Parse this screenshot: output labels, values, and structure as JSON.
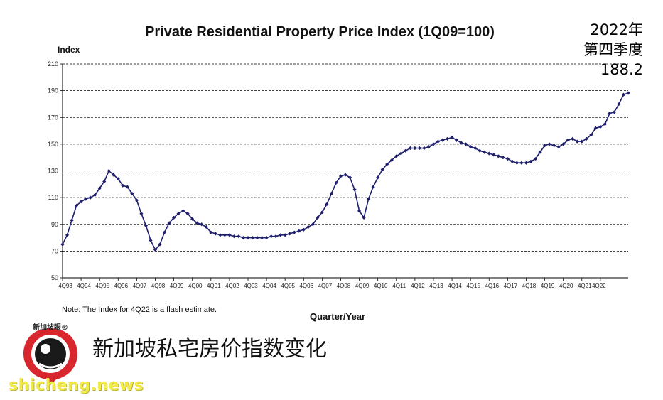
{
  "chart_data": {
    "type": "line",
    "title": "Private Residential Property Price Index (1Q09=100)",
    "ylabel": "Index",
    "xlabel": "Quarter/Year",
    "ylim": [
      50,
      210
    ],
    "yticks": [
      50,
      70,
      90,
      110,
      130,
      150,
      170,
      190,
      210
    ],
    "grid": "horizontal dashed",
    "x_tick_labels": [
      "4Q93",
      "4Q94",
      "4Q95",
      "4Q96",
      "4Q97",
      "4Q98",
      "4Q99",
      "4Q00",
      "4Q01",
      "4Q02",
      "4Q03",
      "4Q04",
      "4Q05",
      "4Q06",
      "4Q07",
      "4Q08",
      "4Q09",
      "4Q10",
      "4Q11",
      "4Q12",
      "4Q13",
      "4Q14",
      "4Q15",
      "4Q16",
      "4Q17",
      "4Q18",
      "4Q19",
      "4Q20",
      "4Q21",
      "4Q22"
    ],
    "series_color": "#1f1f6e",
    "values": [
      75,
      82,
      93,
      104,
      107,
      109,
      110,
      112,
      117,
      122,
      130,
      127,
      124,
      119,
      118,
      113,
      108,
      98,
      89,
      78,
      71,
      75,
      84,
      91,
      95,
      98,
      100,
      98,
      94,
      91,
      90,
      88,
      84,
      83,
      82,
      82,
      82,
      81,
      81,
      80,
      80,
      80,
      80,
      80,
      80,
      81,
      81,
      82,
      82,
      83,
      84,
      85,
      86,
      88,
      90,
      95,
      99,
      105,
      113,
      121,
      126,
      127,
      125,
      116,
      100,
      95,
      109,
      118,
      125,
      131,
      135,
      138,
      141,
      143,
      145,
      147,
      147,
      147,
      147,
      148,
      150,
      152,
      153,
      154,
      155,
      153,
      151,
      150,
      148,
      147,
      145,
      144,
      143,
      142,
      141,
      140,
      139,
      137,
      136,
      136,
      136,
      137,
      139,
      144,
      149,
      150,
      149,
      148,
      150,
      153,
      154,
      152,
      152,
      154,
      157,
      162,
      163,
      165,
      173,
      174,
      180,
      187,
      188.2
    ],
    "note": "Note: The Index for 4Q22 is a flash estimate.",
    "callout": {
      "line1": "2022年",
      "line2": "第四季度",
      "line3": "188.2"
    }
  },
  "caption": "新加坡私宅房价指数变化",
  "logo": {
    "text": "新加坡眼",
    "reg": "®"
  },
  "watermark": "shicheng.news"
}
